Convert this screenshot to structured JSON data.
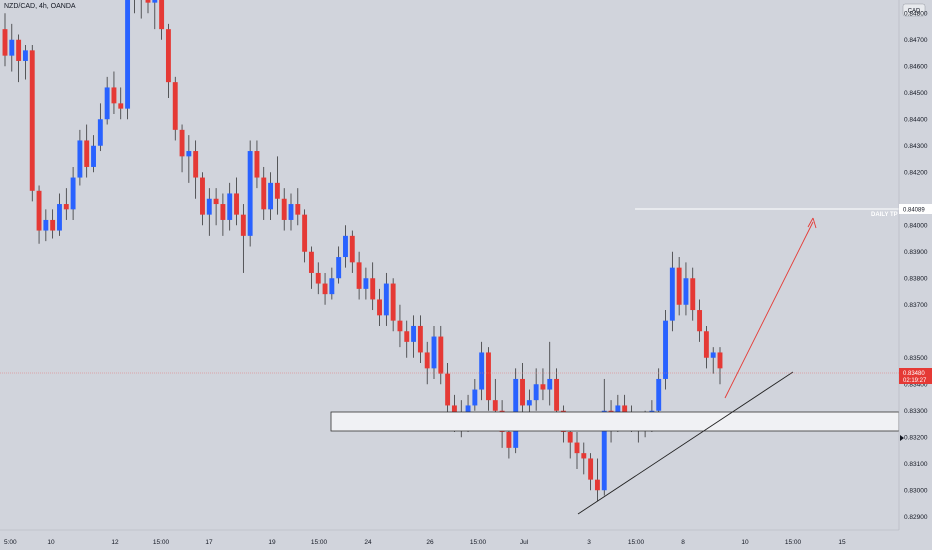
{
  "header": {
    "symbol": "NZD/CAD, 4h, OANDA"
  },
  "price_scale": {
    "currency_label": "CAD"
  },
  "colors": {
    "background": "#d1d4dc",
    "bullish": "#2962ff",
    "bearish": "#e53935",
    "arrow": "#e53935",
    "zone_fill": "#f0f1f4",
    "zone_stroke": "#333333",
    "current_price_line": "#e57373",
    "target_line": "#ffffff",
    "trendline": "#222222"
  },
  "annotations": {
    "target_label": "DAILY TP",
    "target_price": "0.84089",
    "current_price": "0.83480",
    "countdown": "02:19:27"
  },
  "chart_data": {
    "type": "candlestick",
    "title": "NZD/CAD, 4h, OANDA",
    "timeframe": "4h",
    "y_axis": {
      "ticks": [
        "0.84800",
        "0.84700",
        "0.84600",
        "0.84500",
        "0.84400",
        "0.84300",
        "0.84200",
        "0.84000",
        "0.83900",
        "0.83800",
        "0.83700",
        "0.83500",
        "0.83400",
        "0.83300",
        "0.83200",
        "0.83100",
        "0.83000",
        "0.82900"
      ],
      "range": [
        0.8285,
        0.8485
      ]
    },
    "x_axis": {
      "tick_labels": [
        "5:00",
        "10",
        "12",
        "15:00",
        "17",
        "19",
        "15:00",
        "24",
        "26",
        "15:00",
        "Jul",
        "3",
        "15:00",
        "8",
        "10",
        "15:00",
        "15"
      ]
    },
    "candles": [
      [
        0.8474,
        0.848,
        0.846,
        0.8464
      ],
      [
        0.8464,
        0.8476,
        0.8458,
        0.847
      ],
      [
        0.847,
        0.8472,
        0.8454,
        0.8462
      ],
      [
        0.8462,
        0.8468,
        0.8455,
        0.8466
      ],
      [
        0.8466,
        0.8468,
        0.8409,
        0.8413
      ],
      [
        0.8413,
        0.8415,
        0.8393,
        0.8398
      ],
      [
        0.8398,
        0.8406,
        0.8394,
        0.8402
      ],
      [
        0.8402,
        0.8406,
        0.8395,
        0.8398
      ],
      [
        0.8398,
        0.8412,
        0.8396,
        0.8408
      ],
      [
        0.8408,
        0.8414,
        0.8402,
        0.8406
      ],
      [
        0.8406,
        0.8422,
        0.8402,
        0.8418
      ],
      [
        0.8418,
        0.8436,
        0.8415,
        0.8432
      ],
      [
        0.8432,
        0.8438,
        0.8418,
        0.8422
      ],
      [
        0.8422,
        0.8434,
        0.842,
        0.843
      ],
      [
        0.843,
        0.8446,
        0.8428,
        0.844
      ],
      [
        0.844,
        0.8456,
        0.8438,
        0.8452
      ],
      [
        0.8452,
        0.8458,
        0.8442,
        0.8446
      ],
      [
        0.8446,
        0.8452,
        0.844,
        0.8444
      ],
      [
        0.8444,
        0.8502,
        0.844,
        0.8498
      ],
      [
        0.8498,
        0.8502,
        0.848,
        0.8486
      ],
      [
        0.8486,
        0.8498,
        0.8478,
        0.8494
      ],
      [
        0.8494,
        0.85,
        0.848,
        0.8484
      ],
      [
        0.8484,
        0.8496,
        0.8474,
        0.849
      ],
      [
        0.849,
        0.8494,
        0.847,
        0.8474
      ],
      [
        0.8474,
        0.8476,
        0.8448,
        0.8454
      ],
      [
        0.8454,
        0.8456,
        0.8432,
        0.8436
      ],
      [
        0.8436,
        0.8438,
        0.842,
        0.8426
      ],
      [
        0.8426,
        0.8434,
        0.8416,
        0.8428
      ],
      [
        0.8428,
        0.8432,
        0.841,
        0.8418
      ],
      [
        0.8418,
        0.842,
        0.84,
        0.8404
      ],
      [
        0.8404,
        0.8414,
        0.8396,
        0.841
      ],
      [
        0.841,
        0.8414,
        0.84,
        0.8408
      ],
      [
        0.8408,
        0.8412,
        0.8396,
        0.8402
      ],
      [
        0.8402,
        0.8416,
        0.8398,
        0.8412
      ],
      [
        0.8412,
        0.8418,
        0.84,
        0.8404
      ],
      [
        0.8404,
        0.8408,
        0.8382,
        0.8396
      ],
      [
        0.8396,
        0.8432,
        0.8392,
        0.8428
      ],
      [
        0.8428,
        0.8432,
        0.8414,
        0.8418
      ],
      [
        0.8418,
        0.8422,
        0.8402,
        0.8406
      ],
      [
        0.8406,
        0.842,
        0.8402,
        0.8416
      ],
      [
        0.8416,
        0.8426,
        0.8404,
        0.841
      ],
      [
        0.841,
        0.8414,
        0.8398,
        0.8402
      ],
      [
        0.8402,
        0.8412,
        0.8398,
        0.8408
      ],
      [
        0.8408,
        0.8414,
        0.84,
        0.8404
      ],
      [
        0.8404,
        0.8406,
        0.8386,
        0.839
      ],
      [
        0.839,
        0.8392,
        0.8376,
        0.8382
      ],
      [
        0.8382,
        0.8386,
        0.8374,
        0.8378
      ],
      [
        0.8378,
        0.8382,
        0.837,
        0.8374
      ],
      [
        0.8374,
        0.8384,
        0.8372,
        0.838
      ],
      [
        0.838,
        0.8392,
        0.8378,
        0.8388
      ],
      [
        0.8388,
        0.84,
        0.8384,
        0.8396
      ],
      [
        0.8396,
        0.8398,
        0.8382,
        0.8386
      ],
      [
        0.8386,
        0.839,
        0.8372,
        0.8376
      ],
      [
        0.8376,
        0.8384,
        0.8372,
        0.838
      ],
      [
        0.838,
        0.8386,
        0.8368,
        0.8372
      ],
      [
        0.8372,
        0.8376,
        0.8362,
        0.8366
      ],
      [
        0.8366,
        0.8382,
        0.8362,
        0.8378
      ],
      [
        0.8378,
        0.838,
        0.836,
        0.8364
      ],
      [
        0.8364,
        0.837,
        0.8354,
        0.836
      ],
      [
        0.836,
        0.8364,
        0.835,
        0.8356
      ],
      [
        0.8356,
        0.8366,
        0.835,
        0.8362
      ],
      [
        0.8362,
        0.8366,
        0.8348,
        0.8352
      ],
      [
        0.8352,
        0.8356,
        0.834,
        0.8346
      ],
      [
        0.8346,
        0.8362,
        0.8342,
        0.8358
      ],
      [
        0.8358,
        0.8362,
        0.834,
        0.8344
      ],
      [
        0.8344,
        0.8348,
        0.8328,
        0.8332
      ],
      [
        0.8332,
        0.8336,
        0.8322,
        0.8328
      ],
      [
        0.8328,
        0.8334,
        0.832,
        0.8324
      ],
      [
        0.8324,
        0.8336,
        0.8322,
        0.8332
      ],
      [
        0.8332,
        0.8342,
        0.833,
        0.8338
      ],
      [
        0.8338,
        0.8356,
        0.8334,
        0.8352
      ],
      [
        0.8352,
        0.8354,
        0.833,
        0.8334
      ],
      [
        0.8334,
        0.8342,
        0.8326,
        0.833
      ],
      [
        0.833,
        0.8334,
        0.8316,
        0.8322
      ],
      [
        0.8322,
        0.8326,
        0.8312,
        0.8316
      ],
      [
        0.8316,
        0.8346,
        0.8314,
        0.8342
      ],
      [
        0.8342,
        0.8348,
        0.8328,
        0.8332
      ],
      [
        0.8332,
        0.8338,
        0.8324,
        0.8334
      ],
      [
        0.8334,
        0.8346,
        0.833,
        0.834
      ],
      [
        0.834,
        0.8346,
        0.8334,
        0.8338
      ],
      [
        0.8338,
        0.8356,
        0.8332,
        0.8342
      ],
      [
        0.8342,
        0.8346,
        0.8326,
        0.833
      ],
      [
        0.833,
        0.8332,
        0.8318,
        0.8322
      ],
      [
        0.8322,
        0.8326,
        0.8312,
        0.8318
      ],
      [
        0.8318,
        0.8322,
        0.8308,
        0.8314
      ],
      [
        0.8314,
        0.8318,
        0.8306,
        0.8312
      ],
      [
        0.8312,
        0.8314,
        0.83,
        0.8304
      ],
      [
        0.8304,
        0.8312,
        0.8296,
        0.83
      ],
      [
        0.83,
        0.8342,
        0.8298,
        0.833
      ],
      [
        0.833,
        0.8334,
        0.8318,
        0.8326
      ],
      [
        0.8326,
        0.8336,
        0.8322,
        0.8332
      ],
      [
        0.8332,
        0.8336,
        0.8324,
        0.8328
      ],
      [
        0.8328,
        0.8332,
        0.8322,
        0.8326
      ],
      [
        0.8326,
        0.8328,
        0.8318,
        0.8324
      ],
      [
        0.8324,
        0.833,
        0.832,
        0.8326
      ],
      [
        0.8326,
        0.8334,
        0.8322,
        0.833
      ],
      [
        0.833,
        0.8346,
        0.8326,
        0.8342
      ],
      [
        0.8342,
        0.8368,
        0.8338,
        0.8364
      ],
      [
        0.8364,
        0.839,
        0.836,
        0.8384
      ],
      [
        0.8384,
        0.8388,
        0.8366,
        0.837
      ],
      [
        0.837,
        0.8386,
        0.8366,
        0.838
      ],
      [
        0.838,
        0.8384,
        0.8364,
        0.8368
      ],
      [
        0.8368,
        0.8372,
        0.8356,
        0.836
      ],
      [
        0.836,
        0.8362,
        0.8346,
        0.835
      ],
      [
        0.835,
        0.8354,
        0.8344,
        0.8352
      ],
      [
        0.8352,
        0.8354,
        0.834,
        0.8346
      ]
    ]
  }
}
